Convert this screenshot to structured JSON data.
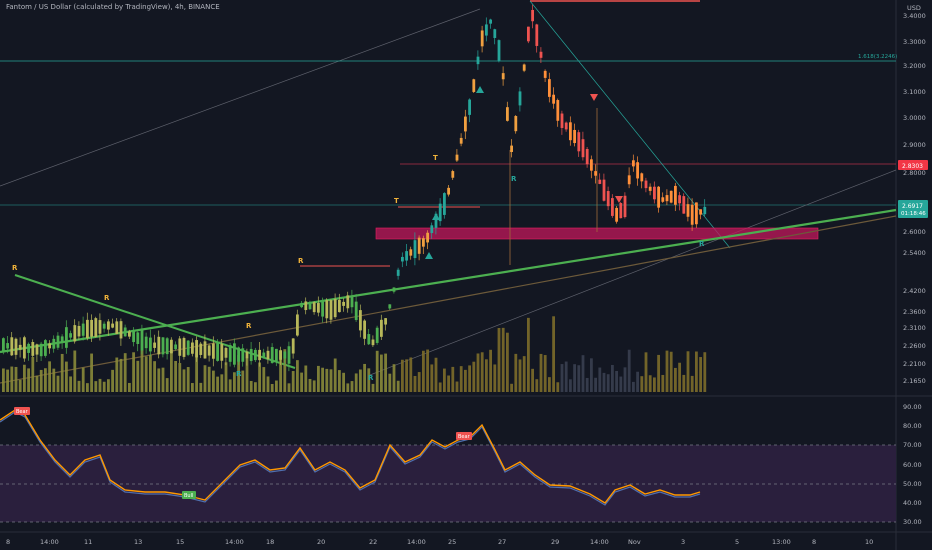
{
  "header": {
    "title": "Fantom / US Dollar (calculated by TradingView), 4h, BINANCE"
  },
  "currency": "USD",
  "price_axis": [
    "3.4000",
    "3.3000",
    "3.2000",
    "3.1000",
    "3.0000",
    "2.9000",
    "2.8000",
    "2.6000",
    "2.5400",
    "2.4200",
    "2.3600",
    "2.3100",
    "2.2600",
    "2.2100",
    "2.1650"
  ],
  "price_tags": {
    "last": "2.6917",
    "countdown": "01:18:46",
    "resistance": "2.8303",
    "fib": "1.618(3.2246)"
  },
  "rsi_axis": [
    "90.00",
    "80.00",
    "70.00",
    "60.00",
    "50.00",
    "40.00",
    "30.00"
  ],
  "time_axis": [
    "8",
    "14:00",
    "11",
    "13",
    "15",
    "14:00",
    "18",
    "20",
    "22",
    "14:00",
    "25",
    "27",
    "29",
    "14:00",
    "Nov",
    "3",
    "5",
    "13:00",
    "8",
    "10"
  ],
  "signals": {
    "bear": "Bear",
    "bull": "Bull"
  },
  "markers": {
    "r": "R",
    "t": "T"
  },
  "colors": {
    "up": "#26a69a",
    "down": "#ef5350",
    "orange": "#ff8f3a",
    "green_line": "#4caf50",
    "zone": "#c2185b",
    "rsi_band": "#2a1f3d",
    "rsi_line": "#ff9800",
    "rsi_ma": "#4f6fb0"
  }
}
